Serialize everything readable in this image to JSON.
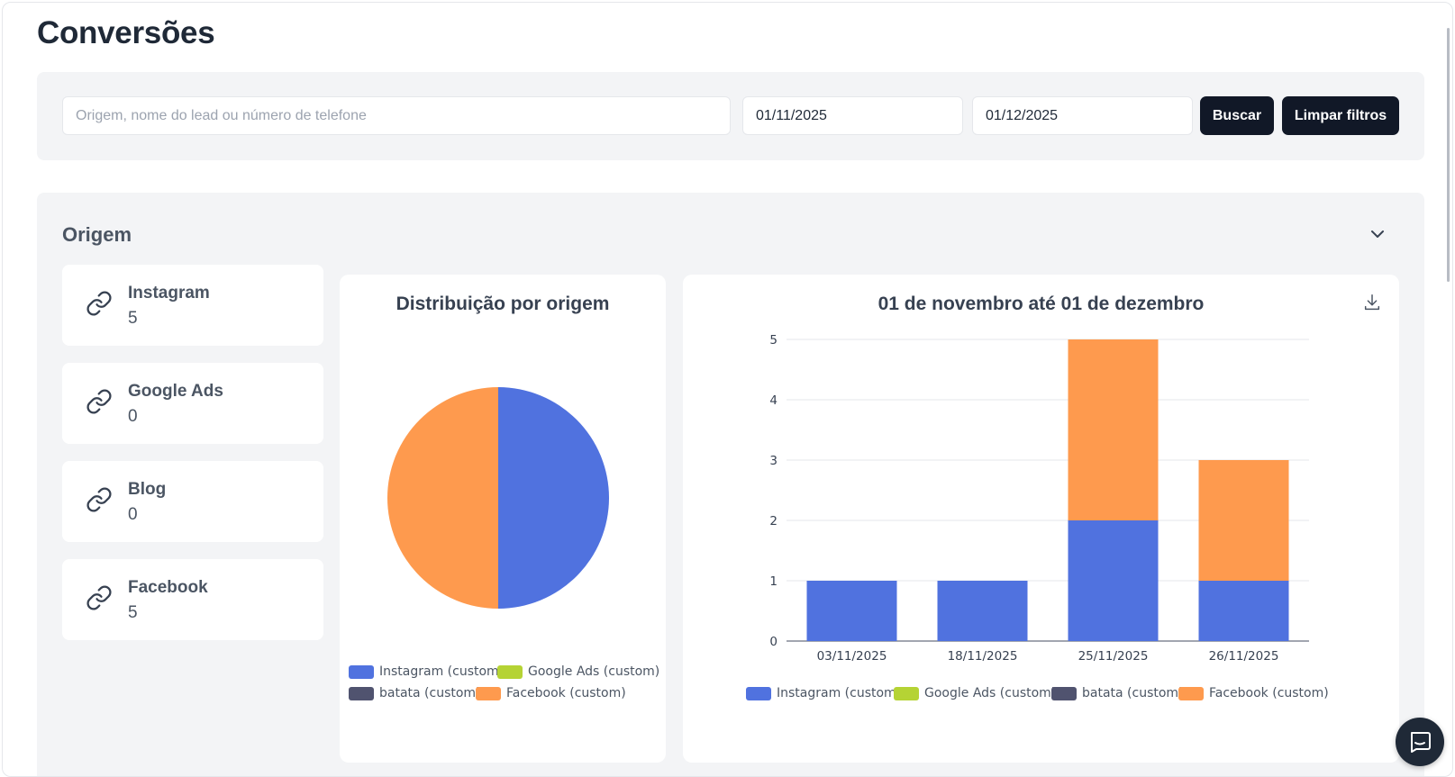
{
  "page": {
    "title": "Conversões"
  },
  "filters": {
    "search_placeholder": "Origem, nome do lead ou número de telefone",
    "date_from": "01/11/2025",
    "date_to": "01/12/2025",
    "search_button": "Buscar",
    "clear_button": "Limpar filtros"
  },
  "origin_section": {
    "title": "Origem",
    "cards": [
      {
        "label": "Instagram",
        "value": "5",
        "icon": "link-icon"
      },
      {
        "label": "Google Ads",
        "value": "0",
        "icon": "link-icon"
      },
      {
        "label": "Blog",
        "value": "0",
        "icon": "link-icon"
      },
      {
        "label": "Facebook",
        "value": "5",
        "icon": "link-icon"
      }
    ]
  },
  "colors": {
    "instagram": "#5072df",
    "google_ads": "#b5d334",
    "batata": "#50536f",
    "facebook": "#fe9a4e"
  },
  "chart_data": [
    {
      "type": "pie",
      "title": "Distribuição por origem",
      "labels": [
        "Instagram (custom)",
        "Google Ads (custom)",
        "batata (custom)",
        "Facebook (custom)"
      ],
      "values": [
        5,
        0,
        0,
        5
      ],
      "colors": [
        "#5072df",
        "#b5d334",
        "#50536f",
        "#fe9a4e"
      ],
      "legend": "bottom"
    },
    {
      "type": "bar",
      "stacked": true,
      "title": "01 de novembro até 01 de dezembro",
      "categories": [
        "03/11/2025",
        "18/11/2025",
        "25/11/2025",
        "26/11/2025"
      ],
      "series": [
        {
          "name": "Instagram (custom)",
          "values": [
            1,
            1,
            2,
            1
          ],
          "color": "#5072df"
        },
        {
          "name": "Google Ads (custom)",
          "values": [
            0,
            0,
            0,
            0
          ],
          "color": "#b5d334"
        },
        {
          "name": "batata (custom)",
          "values": [
            0,
            0,
            0,
            0
          ],
          "color": "#50536f"
        },
        {
          "name": "Facebook (custom)",
          "values": [
            0,
            0,
            3,
            2
          ],
          "color": "#fe9a4e"
        }
      ],
      "ylim": [
        0,
        5
      ],
      "yticks": [
        0,
        1,
        2,
        3,
        4,
        5
      ],
      "grid": true,
      "legend": "bottom"
    }
  ]
}
